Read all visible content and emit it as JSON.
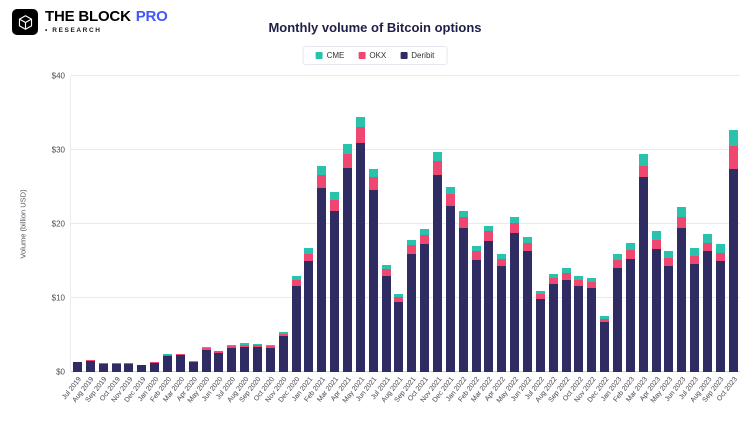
{
  "header": {
    "brand": "THE BLOCK",
    "brand_suffix": "PRO",
    "tagline": "• RESEARCH"
  },
  "chart_data": {
    "type": "bar",
    "stacked": true,
    "title": "Monthly volume of Bitcoin options",
    "ylabel": "Volume (billion USD)",
    "ylim": [
      0,
      40
    ],
    "yticks": [
      "$0",
      "$10",
      "$20",
      "$30",
      "$40"
    ],
    "grid": true,
    "legend_position": "top",
    "legend_order": [
      "CME",
      "OKX",
      "Deribit"
    ],
    "categories": [
      "Jul 2019",
      "Aug 2019",
      "Sep 2019",
      "Oct 2019",
      "Nov 2019",
      "Dec 2019",
      "Jan 2020",
      "Feb 2020",
      "Mar 2020",
      "Apr 2020",
      "May 2020",
      "Jun 2020",
      "Jul 2020",
      "Aug 2020",
      "Sep 2020",
      "Oct 2020",
      "Nov 2020",
      "Dec 2020",
      "Jan 2021",
      "Feb 2021",
      "Mar 2021",
      "Apr 2021",
      "May 2021",
      "Jun 2021",
      "Jul 2021",
      "Aug 2021",
      "Sep 2021",
      "Oct 2021",
      "Nov 2021",
      "Dec 2021",
      "Jan 2022",
      "Feb 2022",
      "Mar 2022",
      "Apr 2022",
      "May 2022",
      "Jun 2022",
      "Jul 2022",
      "Aug 2022",
      "Sep 2022",
      "Oct 2022",
      "Nov 2022",
      "Dec 2022",
      "Jan 2023",
      "Feb 2023",
      "Mar 2023",
      "Apr 2023",
      "May 2023",
      "Jun 2023",
      "Jul 2023",
      "Aug 2023",
      "Sep 2023",
      "Oct 2023"
    ],
    "series": [
      {
        "name": "Deribit",
        "color": "#2f2c64",
        "values": [
          1.3,
          1.45,
          1.1,
          1.1,
          1.1,
          0.9,
          1.25,
          2.15,
          2.25,
          1.3,
          3.0,
          2.6,
          3.2,
          3.4,
          3.35,
          3.2,
          4.8,
          11.6,
          15.0,
          24.9,
          21.8,
          27.6,
          31.0,
          24.6,
          13.0,
          9.4,
          16.0,
          17.3,
          26.6,
          22.4,
          19.5,
          15.2,
          17.7,
          14.3,
          18.8,
          16.4,
          9.8,
          11.9,
          12.5,
          11.6,
          11.3,
          6.7,
          14.0,
          15.3,
          26.3,
          16.6,
          14.3,
          19.5,
          14.6,
          16.3,
          15.0,
          27.5
        ]
      },
      {
        "name": "OKX",
        "color": "#ef476f",
        "values": [
          0.1,
          0.15,
          0.1,
          0.1,
          0.1,
          0.1,
          0.1,
          0.15,
          0.15,
          0.1,
          0.2,
          0.2,
          0.25,
          0.3,
          0.25,
          0.25,
          0.35,
          0.8,
          1.0,
          1.7,
          1.5,
          1.9,
          2.1,
          1.7,
          0.9,
          0.7,
          1.1,
          1.2,
          1.9,
          1.6,
          1.4,
          1.1,
          1.3,
          1.0,
          1.3,
          1.1,
          0.7,
          0.8,
          0.9,
          0.8,
          0.8,
          0.5,
          1.1,
          1.2,
          1.6,
          1.3,
          1.1,
          1.4,
          1.1,
          1.2,
          1.1,
          3.0
        ]
      },
      {
        "name": "CME",
        "color": "#29c3ad",
        "values": [
          0,
          0,
          0,
          0,
          0,
          0,
          0.05,
          0.1,
          0.1,
          0.1,
          0.2,
          0.1,
          0.15,
          0.2,
          0.2,
          0.15,
          0.25,
          0.6,
          0.8,
          1.2,
          1.0,
          1.3,
          1.4,
          1.1,
          0.6,
          0.4,
          0.7,
          0.8,
          1.2,
          1.0,
          0.9,
          0.7,
          0.8,
          0.7,
          0.9,
          0.8,
          0.5,
          0.6,
          0.6,
          0.6,
          0.6,
          0.4,
          0.8,
          0.9,
          1.5,
          1.1,
          1.0,
          1.4,
          1.1,
          1.2,
          1.2,
          2.2
        ]
      }
    ]
  }
}
